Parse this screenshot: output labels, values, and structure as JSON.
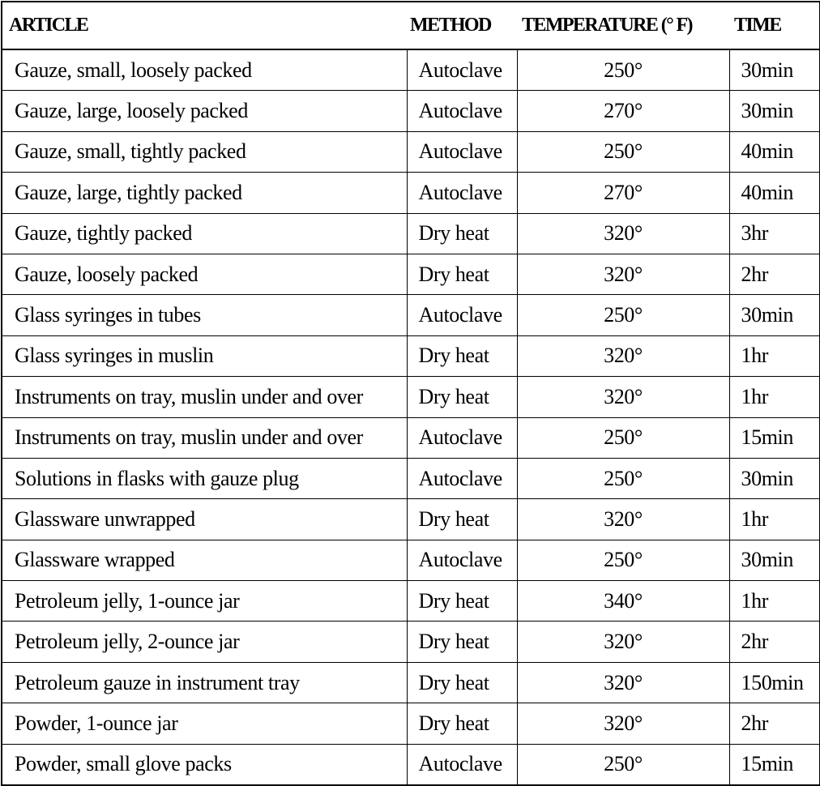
{
  "table": {
    "header": [
      "ARTICLE",
      "METHOD",
      "TEMPERATURE (° F)",
      "TIME"
    ],
    "rows": [
      [
        "Gauze, small, loosely packed",
        "Autoclave",
        "250°",
        "30min"
      ],
      [
        "Gauze, large, loosely packed",
        "Autoclave",
        "270°",
        "30min"
      ],
      [
        "Gauze, small, tightly packed",
        "Autoclave",
        "250°",
        "40min"
      ],
      [
        "Gauze, large, tightly packed",
        "Autoclave",
        "270°",
        "40min"
      ],
      [
        "Gauze, tightly packed",
        "Dry heat",
        "320°",
        "3hr"
      ],
      [
        "Gauze, loosely packed",
        "Dry heat",
        "320°",
        "2hr"
      ],
      [
        "Glass syringes in tubes",
        "Autoclave",
        "250°",
        "30min"
      ],
      [
        "Glass syringes in muslin",
        "Dry heat",
        "320°",
        "1hr"
      ],
      [
        "Instruments on tray, muslin under and over",
        "Dry heat",
        "320°",
        "1hr"
      ],
      [
        "Instruments on tray, muslin under and over",
        "Autoclave",
        "250°",
        "15min"
      ],
      [
        "Solutions in flasks with gauze plug",
        "Autoclave",
        "250°",
        "30min"
      ],
      [
        "Glassware unwrapped",
        "Dry heat",
        "320°",
        "1hr"
      ],
      [
        "Glassware wrapped",
        "Autoclave",
        "250°",
        "30min"
      ],
      [
        "Petroleum jelly, 1-ounce jar",
        "Dry heat",
        "340°",
        "1hr"
      ],
      [
        "Petroleum jelly, 2-ounce jar",
        "Dry heat",
        "320°",
        "2hr"
      ],
      [
        "Petroleum gauze in instrument tray",
        "Dry heat",
        "320°",
        "150min"
      ],
      [
        "Powder, 1-ounce jar",
        "Dry heat",
        "320°",
        "2hr"
      ],
      [
        "Powder, small glove packs",
        "Autoclave",
        "250°",
        "15min"
      ]
    ]
  }
}
